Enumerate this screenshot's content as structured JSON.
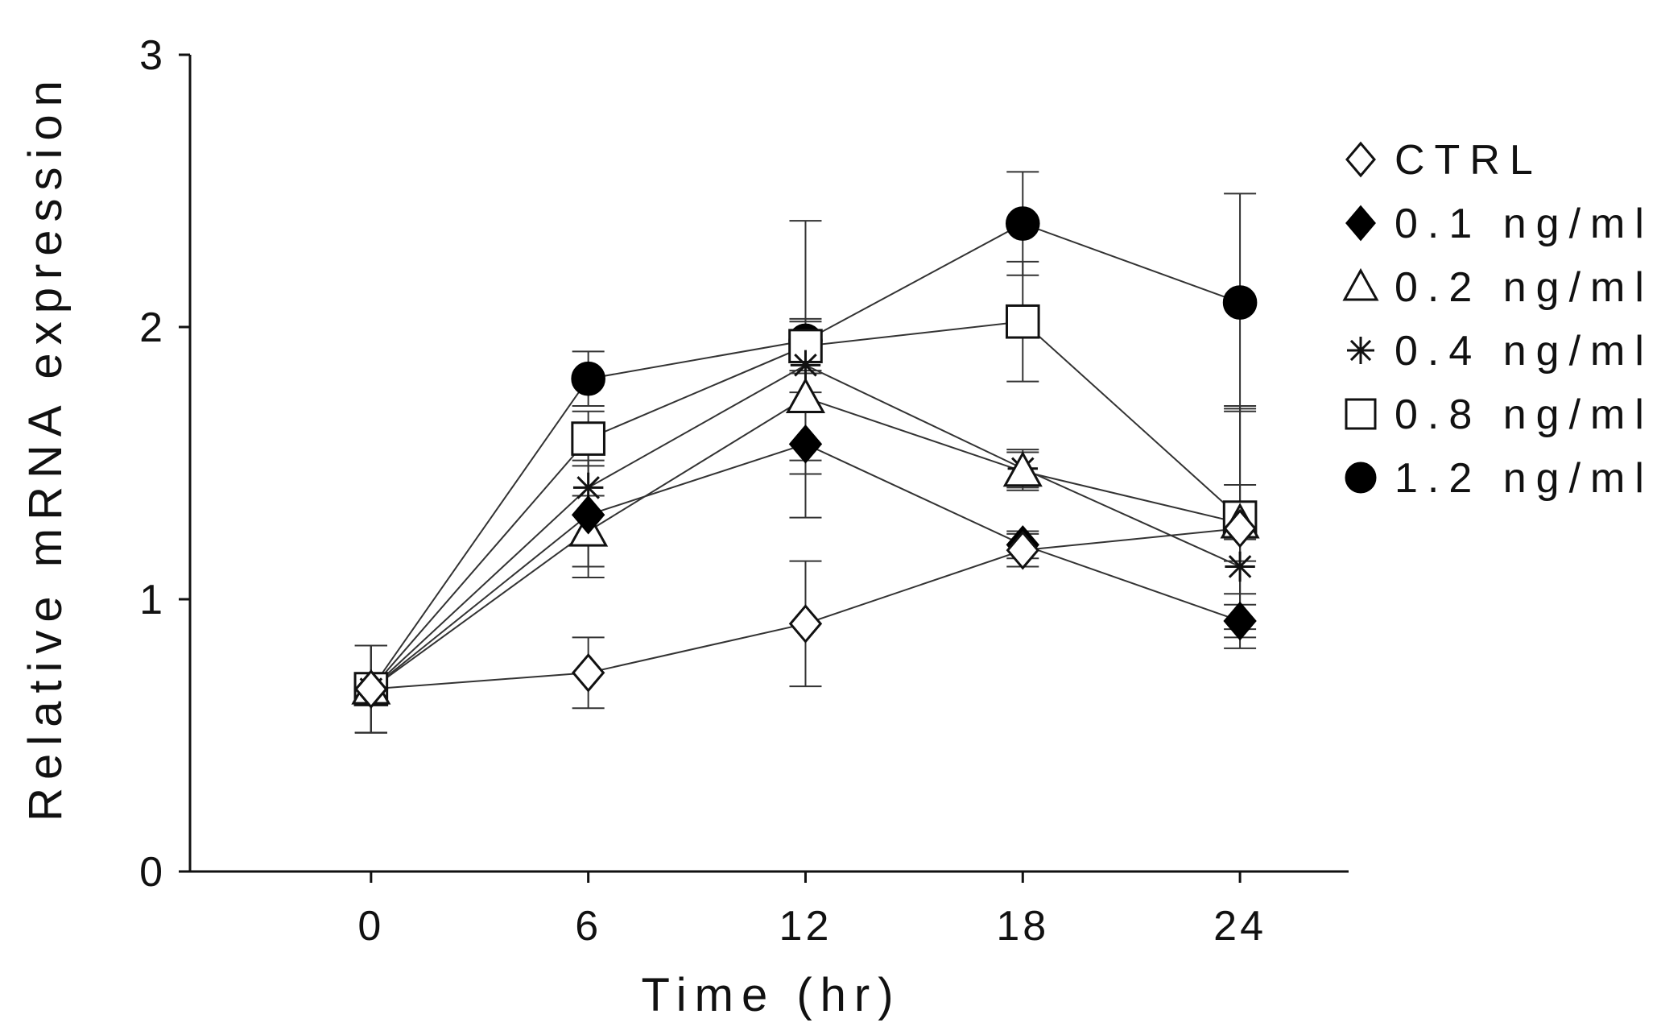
{
  "chart_data": {
    "type": "line",
    "title": "",
    "xlabel": "Time (hr)",
    "ylabel": "Relative mRNA expression",
    "xlim": [
      -5,
      27
    ],
    "ylim": [
      0,
      3
    ],
    "x_ticks": [
      0,
      6,
      12,
      18,
      24
    ],
    "x_tick_labels": [
      "0",
      "6",
      "12",
      "18",
      "24"
    ],
    "y_ticks": [
      0,
      1,
      2,
      3
    ],
    "y_tick_labels": [
      "0",
      "1",
      "2",
      "3"
    ],
    "legend_position": "right",
    "grid": false,
    "x": [
      0,
      6,
      12,
      18,
      24
    ],
    "series": [
      {
        "name": "CTRL",
        "marker": "diamond-open",
        "values": [
          0.67,
          0.73,
          0.91,
          1.18,
          1.26
        ],
        "errors": [
          0.16,
          0.13,
          0.23,
          0.06,
          0.44
        ]
      },
      {
        "name": "0.1 ng/ml",
        "marker": "diamond-filled",
        "values": [
          0.67,
          1.31,
          1.57,
          1.2,
          0.92
        ],
        "errors": [
          0.16,
          0.23,
          0.27,
          0.05,
          0.06
        ]
      },
      {
        "name": "0.2 ng/ml",
        "marker": "triangle-open",
        "values": [
          0.67,
          1.25,
          1.74,
          1.47,
          1.28
        ],
        "errors": [
          0.16,
          0.13,
          0.28,
          0.07,
          0.14
        ]
      },
      {
        "name": "0.4 ng/ml",
        "marker": "asterisk",
        "values": [
          0.67,
          1.41,
          1.86,
          1.48,
          1.12
        ],
        "errors": [
          0.16,
          0.1,
          0.1,
          0.07,
          0.1
        ]
      },
      {
        "name": "0.8 ng/ml",
        "marker": "square-open",
        "values": [
          0.67,
          1.59,
          1.93,
          2.02,
          1.3
        ],
        "errors": [
          0.16,
          0.1,
          0.1,
          0.22,
          0.41
        ]
      },
      {
        "name": "1.2 ng/ml",
        "marker": "circle-filled",
        "values": [
          0.67,
          1.81,
          1.95,
          2.38,
          2.09
        ],
        "errors": [
          0.16,
          0.1,
          0.44,
          0.19,
          0.4
        ]
      }
    ]
  }
}
